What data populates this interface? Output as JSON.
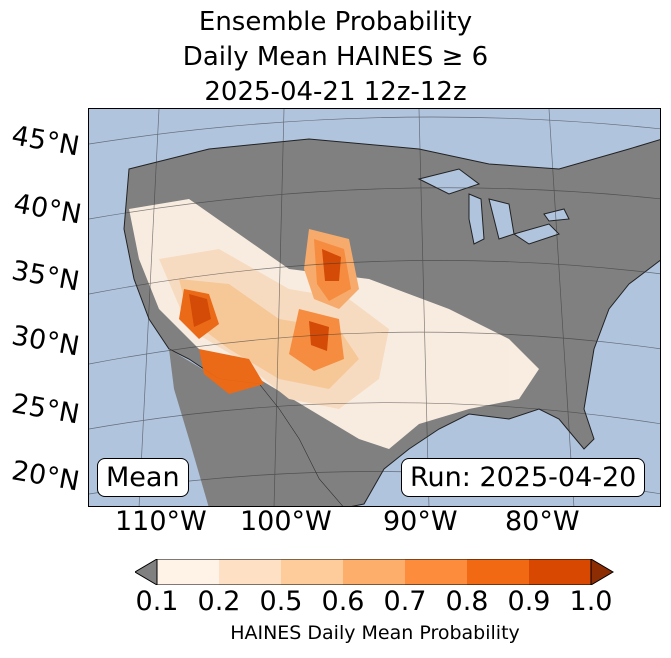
{
  "title": {
    "line1": "Ensemble Probability",
    "line2": "Daily Mean HAINES ≥ 6",
    "line3": "2025-04-21 12z-12z"
  },
  "labels": {
    "mean": "Mean",
    "run": "Run: 2025-04-20"
  },
  "lat_labels": [
    "45°N",
    "40°N",
    "35°N",
    "30°N",
    "25°N",
    "20°N"
  ],
  "lon_labels": [
    "110°W",
    "100°W",
    "90°W",
    "80°W"
  ],
  "colorbar": {
    "ticks": [
      "0.1",
      "0.2",
      "0.5",
      "0.6",
      "0.7",
      "0.8",
      "0.9",
      "1.0"
    ],
    "label": "HAINES Daily Mean Probability",
    "colors": [
      "#fff2e6",
      "#fee0c4",
      "#fdcc9a",
      "#fdae6b",
      "#fd8d3c",
      "#f16913",
      "#d94801"
    ],
    "under_color": "#808080",
    "over_color": "#8c2d04"
  },
  "map_colors": {
    "ocean": "#b0c4de",
    "land_gray": "#808080",
    "lakes": "#b0c4de"
  }
}
